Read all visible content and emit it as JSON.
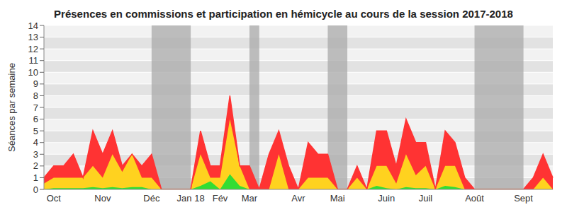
{
  "chart_data": {
    "type": "area",
    "title": "Présences en commissions et participation en hémicycle au cours de la session 2017-2018",
    "y_label": "Séances par semaine",
    "categories": [
      null,
      "Oct",
      null,
      null,
      null,
      null,
      "Nov",
      null,
      null,
      null,
      null,
      "Déc",
      null,
      null,
      null,
      "Jan 18",
      null,
      null,
      "Fév",
      null,
      null,
      "Mar",
      null,
      null,
      null,
      null,
      "Avr",
      null,
      null,
      null,
      "Mai",
      null,
      null,
      null,
      null,
      "Juin",
      null,
      null,
      null,
      "Juil",
      null,
      null,
      null,
      null,
      "Août",
      null,
      null,
      null,
      null,
      "Sept",
      null,
      null,
      null
    ],
    "series": [
      {
        "color": "#33dd33",
        "values": [
          0,
          0.1,
          0.1,
          0.1,
          0.1,
          0.2,
          0.1,
          0.2,
          0.1,
          0.2,
          0.2,
          0,
          0,
          0,
          0,
          0,
          0.3,
          0.7,
          0,
          1.3,
          0.3,
          0,
          0,
          0,
          0,
          0,
          0,
          0,
          0,
          0,
          0,
          0,
          0,
          0,
          0.3,
          0.1,
          0,
          0.2,
          0.1,
          0.1,
          0,
          0.3,
          0.2,
          0,
          0,
          0,
          0,
          0,
          0,
          0,
          0,
          0,
          0
        ]
      },
      {
        "color": "#ffd21f",
        "values": [
          0.5,
          0.9,
          0.9,
          0.9,
          0.9,
          1.8,
          0.9,
          2.8,
          1.4,
          2.8,
          0.8,
          1,
          0,
          0,
          0,
          0,
          2.7,
          0.3,
          1,
          4.7,
          1.7,
          0,
          0,
          0,
          3,
          0,
          0,
          1,
          1,
          1,
          0,
          0,
          1,
          0,
          1.7,
          1.9,
          0.5,
          2.8,
          1.1,
          1.9,
          0,
          1.7,
          1.8,
          0,
          0,
          0,
          0,
          0,
          0,
          0,
          0,
          1,
          0
        ]
      },
      {
        "color": "#ff3333",
        "values": [
          0.5,
          1,
          1,
          2,
          0,
          3,
          2,
          2,
          0.5,
          0,
          1,
          2,
          0,
          0,
          0,
          0,
          2,
          1,
          1,
          2,
          0,
          2,
          0,
          3,
          2,
          2,
          0,
          3,
          2,
          2,
          0,
          0,
          1,
          0,
          3,
          3,
          1.5,
          3,
          2.8,
          2,
          0,
          3,
          2,
          1,
          0,
          0,
          0,
          0,
          0,
          0,
          1,
          2,
          1
        ]
      }
    ],
    "shaded": [
      [
        11,
        15
      ],
      [
        21,
        22
      ],
      [
        29,
        31
      ],
      [
        44,
        49
      ]
    ],
    "ylim": [
      0,
      14
    ],
    "yticks": [
      0,
      1,
      2,
      3,
      4,
      5,
      6,
      7,
      8,
      9,
      10,
      11,
      12,
      13,
      14
    ],
    "grid": true,
    "stacked": true
  }
}
